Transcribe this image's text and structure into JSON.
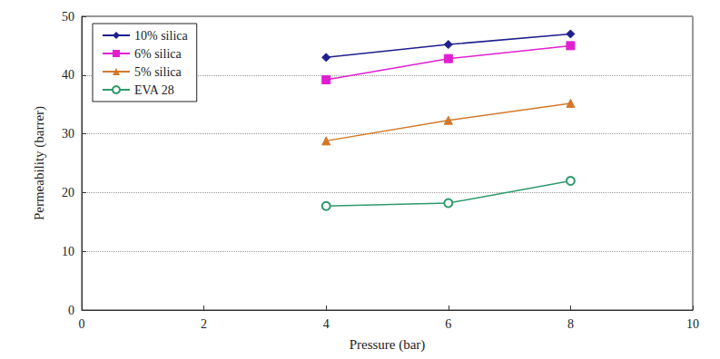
{
  "chart_data": {
    "type": "line",
    "x_label": "Pressure (bar)",
    "y_label": "Permeability (barrer)",
    "x": [
      4,
      6,
      8
    ],
    "series": [
      {
        "name": "10% silica",
        "color": "#1f1f8f",
        "marker": "diamond",
        "values": [
          43,
          45.2,
          47
        ]
      },
      {
        "name": "6% silica",
        "color": "#e020d0",
        "marker": "square",
        "values": [
          39.2,
          42.8,
          45
        ]
      },
      {
        "name": "5% silica",
        "color": "#d2782a",
        "marker": "triangle",
        "values": [
          28.8,
          32.3,
          35.2
        ]
      },
      {
        "name": "EVA 28",
        "color": "#2e9a6a",
        "marker": "circle",
        "values": [
          17.7,
          18.2,
          22
        ]
      }
    ],
    "xlim": [
      0,
      10
    ],
    "xticks": [
      0,
      2,
      4,
      6,
      8,
      10
    ],
    "ylim": [
      0,
      50
    ],
    "yticks": [
      0,
      10,
      20,
      30,
      40,
      50
    ],
    "grid": true,
    "legend": "upper left"
  }
}
